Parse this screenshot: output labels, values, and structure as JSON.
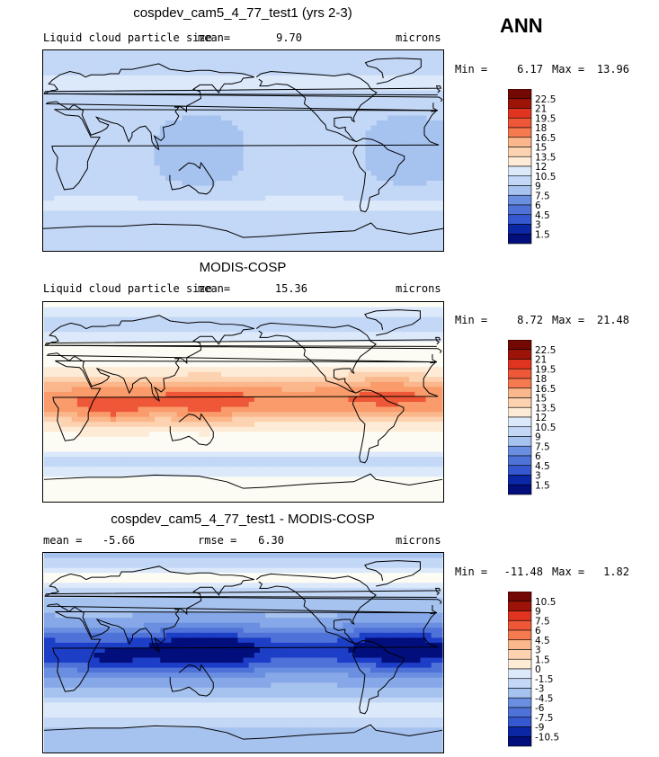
{
  "season": "ANN",
  "units": "microns",
  "colors": {
    "positive": [
      "#fdebd6",
      "#fcd2b0",
      "#fbb78c",
      "#f99b6b",
      "#f57a4f",
      "#ee5737",
      "#e03420",
      "#c31f10",
      "#9e1307",
      "#740804"
    ],
    "white": "#fdfcf4",
    "negative": [
      "#dce9fb",
      "#c3d7f6",
      "#a6c2ef",
      "#86a8e8",
      "#6a8ee0",
      "#4f72d9",
      "#3557cf",
      "#1d3ec6",
      "#0c27a6",
      "#020e7c"
    ]
  },
  "panels": [
    {
      "id": "model",
      "title": "cospdev_cam5_4_77_test1 (yrs 2-3)",
      "variable": "Liquid cloud particle size",
      "mean_label": "mean=",
      "mean_value": "9.70",
      "units": "microns",
      "min_label": "Min =",
      "min_value": "6.17",
      "max_label": "Max =",
      "max_value": "13.96",
      "colorbar_labels": [
        "22.5",
        "21",
        "19.5",
        "18",
        "16.5",
        "15",
        "13.5",
        "12",
        "10.5",
        "9",
        "7.5",
        "6",
        "4.5",
        "3",
        "1.5"
      ]
    },
    {
      "id": "obs",
      "title": "MODIS-COSP",
      "variable": "Liquid cloud particle size",
      "mean_label": "mean=",
      "mean_value": "15.36",
      "units": "microns",
      "min_label": "Min =",
      "min_value": "8.72",
      "max_label": "Max =",
      "max_value": "21.48",
      "colorbar_labels": [
        "22.5",
        "21",
        "19.5",
        "18",
        "16.5",
        "15",
        "13.5",
        "12",
        "10.5",
        "9",
        "7.5",
        "6",
        "4.5",
        "3",
        "1.5"
      ]
    },
    {
      "id": "diff",
      "title": "cospdev_cam5_4_77_test1 - MODIS-COSP",
      "mean_label": "mean =",
      "mean_value": "-5.66",
      "rmse_label": "rmse =",
      "rmse_value": "6.30",
      "units": "microns",
      "min_label": "Min =",
      "min_value": "-11.48",
      "max_label": "Max =",
      "max_value": "1.82",
      "colorbar_labels": [
        "10.5",
        "9",
        "7.5",
        "6",
        "4.5",
        "3",
        "1.5",
        "0",
        "-1.5",
        "-3",
        "-4.5",
        "-6",
        "-7.5",
        "-9",
        "-10.5"
      ]
    }
  ]
}
